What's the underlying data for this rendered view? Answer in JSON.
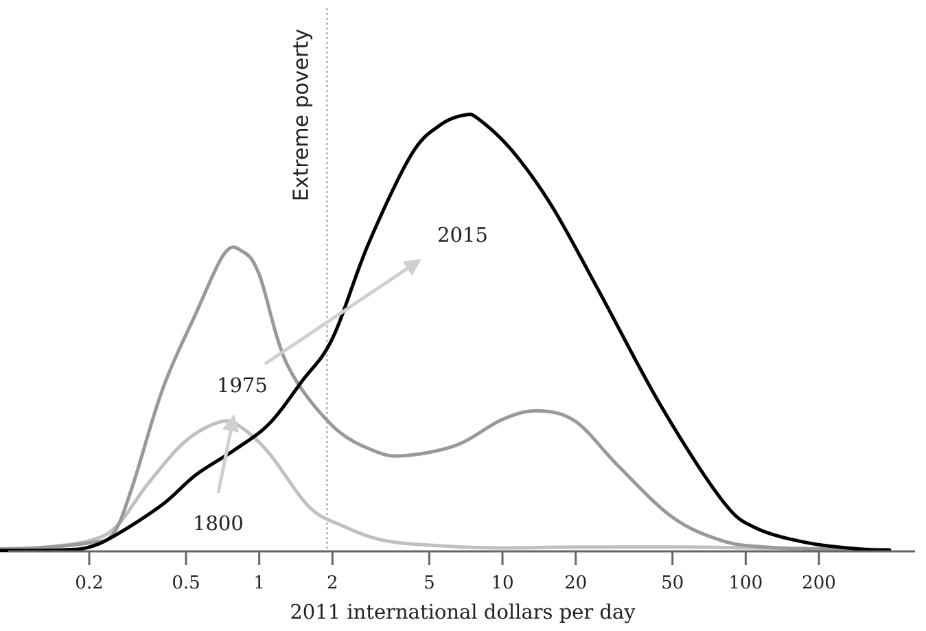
{
  "chart_data": {
    "type": "area",
    "title": "",
    "xlabel": "2011 international dollars per day",
    "ylabel": "",
    "x_scale": "log",
    "xlim": [
      0.06,
      400
    ],
    "ylim": [
      0,
      1
    ],
    "x_ticks": [
      0.2,
      0.5,
      1,
      2,
      5,
      10,
      20,
      50,
      100,
      200
    ],
    "x_tick_labels": [
      "0.2",
      "0.5",
      "1",
      "2",
      "5",
      "10",
      "20",
      "50",
      "100",
      "200"
    ],
    "grid": false,
    "legend": "none",
    "reference_line": {
      "label": "Extreme poverty",
      "x": 1.9
    },
    "series": [
      {
        "name": "1800",
        "color": "#c0c0c0",
        "points": [
          [
            0.07,
            0.005
          ],
          [
            0.12,
            0.008
          ],
          [
            0.2,
            0.025
          ],
          [
            0.26,
            0.06
          ],
          [
            0.35,
            0.16
          ],
          [
            0.5,
            0.26
          ],
          [
            0.7,
            0.305
          ],
          [
            0.85,
            0.29
          ],
          [
            1.1,
            0.23
          ],
          [
            1.6,
            0.105
          ],
          [
            2.2,
            0.06
          ],
          [
            3.3,
            0.025
          ],
          [
            6,
            0.012
          ],
          [
            10,
            0.008
          ],
          [
            20,
            0.01
          ],
          [
            60,
            0.01
          ],
          [
            100,
            0.008
          ],
          [
            200,
            0.006
          ],
          [
            390,
            0.004
          ]
        ]
      },
      {
        "name": "1975",
        "color": "#999999",
        "points": [
          [
            0.07,
            0.005
          ],
          [
            0.12,
            0.008
          ],
          [
            0.2,
            0.02
          ],
          [
            0.25,
            0.04
          ],
          [
            0.3,
            0.15
          ],
          [
            0.4,
            0.38
          ],
          [
            0.55,
            0.56
          ],
          [
            0.72,
            0.7
          ],
          [
            0.85,
            0.705
          ],
          [
            1.0,
            0.65
          ],
          [
            1.3,
            0.44
          ],
          [
            2.0,
            0.295
          ],
          [
            3.0,
            0.235
          ],
          [
            4.0,
            0.225
          ],
          [
            6.5,
            0.25
          ],
          [
            10,
            0.31
          ],
          [
            14,
            0.33
          ],
          [
            20,
            0.305
          ],
          [
            30,
            0.2
          ],
          [
            50,
            0.08
          ],
          [
            80,
            0.025
          ],
          [
            120,
            0.01
          ],
          [
            200,
            0.006
          ],
          [
            390,
            0.004
          ]
        ]
      },
      {
        "name": "2015",
        "color": "#000000",
        "points": [
          [
            0.07,
            0.002
          ],
          [
            0.15,
            0.003
          ],
          [
            0.2,
            0.01
          ],
          [
            0.26,
            0.04
          ],
          [
            0.4,
            0.11
          ],
          [
            0.55,
            0.18
          ],
          [
            0.8,
            0.24
          ],
          [
            1.1,
            0.3
          ],
          [
            1.5,
            0.4
          ],
          [
            2.0,
            0.5
          ],
          [
            2.8,
            0.72
          ],
          [
            4.2,
            0.93
          ],
          [
            5.5,
            1.0
          ],
          [
            7.0,
            1.025
          ],
          [
            8.0,
            1.015
          ],
          [
            11,
            0.94
          ],
          [
            16,
            0.81
          ],
          [
            25,
            0.61
          ],
          [
            45,
            0.34
          ],
          [
            80,
            0.12
          ],
          [
            110,
            0.055
          ],
          [
            180,
            0.02
          ],
          [
            300,
            0.005
          ],
          [
            390,
            0.003
          ]
        ]
      }
    ],
    "arrows": [
      {
        "from": "1800",
        "to": "1975"
      },
      {
        "from": "1975",
        "to": "2015"
      }
    ]
  }
}
